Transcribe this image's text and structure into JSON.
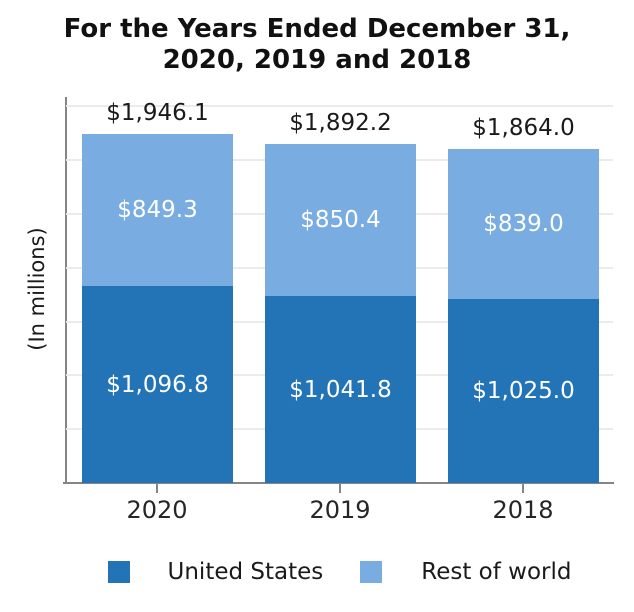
{
  "chart": {
    "title_line1": "For the Years Ended December 31,",
    "title_line2": "2020, 2019 and 2018",
    "ylabel": "(In millions)"
  },
  "chart_data": {
    "type": "bar",
    "stacked": true,
    "categories": [
      "2020",
      "2019",
      "2018"
    ],
    "series": [
      {
        "name": "United States",
        "color": "#2373b7",
        "values": [
          1096.8,
          1041.8,
          1025.0
        ],
        "labels": [
          "$1,096.8",
          "$1,041.8",
          "$1,025.0"
        ]
      },
      {
        "name": "Rest of world",
        "color": "#79ace0",
        "values": [
          849.3,
          850.4,
          839.0
        ],
        "labels": [
          "$849.3",
          "$850.4",
          "$839.0"
        ]
      }
    ],
    "totals": [
      1946.1,
      1892.2,
      1864.0
    ],
    "total_labels": [
      "$1,946.1",
      "$1,892.2",
      "$1,864.0"
    ],
    "title": "For the Years Ended December 31, 2020, 2019 and 2018",
    "xlabel": "",
    "ylabel": "(In millions)",
    "ylim": [
      0,
      2152
    ],
    "gridline_step": 300,
    "grid": "horizontal",
    "legend_position": "bottom"
  },
  "legend": {
    "items": [
      {
        "label": "United States",
        "color": "#2373b7"
      },
      {
        "label": "Rest of world",
        "color": "#79ace0"
      }
    ]
  },
  "colors": {
    "united_states_blue": "#2373b7",
    "rest_of_world_blue": "#79ace0",
    "gridline": "#ebebeb",
    "axis_gray": "#858585",
    "text_dark": "#1a1a1a"
  }
}
